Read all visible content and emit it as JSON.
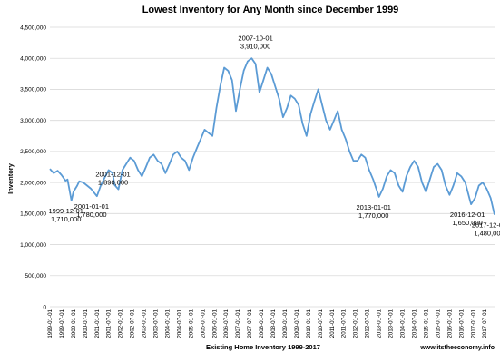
{
  "chart_data": {
    "type": "line",
    "title": "Lowest Inventory for Any Month since December 1999",
    "xlabel": "Existing Home Inventory 1999-2017",
    "ylabel": "Inventory",
    "watermark": "www.itstheeconomy.info",
    "ylim": [
      0,
      4500000
    ],
    "yticks": [
      "0",
      "500,000",
      "1,000,000",
      "1,500,000",
      "2,000,000",
      "2,500,000",
      "3,000,000",
      "3,500,000",
      "4,000,000",
      "4,500,000"
    ],
    "ytick_values": [
      0,
      500000,
      1000000,
      1500000,
      2000000,
      2500000,
      3000000,
      3500000,
      4000000,
      4500000
    ],
    "xticks": [
      "1999-01-01",
      "1999-07-01",
      "2000-01-01",
      "2000-07-01",
      "2001-01-01",
      "2001-07-01",
      "2002-01-01",
      "2002-07-01",
      "2003-01-01",
      "2003-07-01",
      "2004-01-01",
      "2004-07-01",
      "2005-01-01",
      "2005-07-01",
      "2006-01-01",
      "2006-07-01",
      "2007-01-01",
      "2007-07-01",
      "2008-01-01",
      "2008-07-01",
      "2009-01-01",
      "2009-07-01",
      "2010-01-01",
      "2010-07-01",
      "2011-01-01",
      "2011-07-01",
      "2012-01-01",
      "2012-07-01",
      "2013-01-01",
      "2013-07-01",
      "2014-01-01",
      "2014-07-01",
      "2015-01-01",
      "2015-07-01",
      "2016-01-01",
      "2016-07-01",
      "2017-01-01",
      "2017-07-01"
    ],
    "gridlines": true,
    "line_color": "#5b9bd5",
    "series": [
      {
        "x": [
          "1999-01-01",
          "1999-03-01",
          "1999-05-01",
          "1999-07-01",
          "1999-09-01",
          "1999-10-01",
          "1999-12-01",
          "2000-01-01",
          "2000-03-01",
          "2000-04-01",
          "2000-06-01",
          "2000-08-01",
          "2000-10-01",
          "2001-01-01",
          "2001-03-01",
          "2001-05-01",
          "2001-07-01",
          "2001-09-01",
          "2001-10-01",
          "2001-12-01",
          "2002-02-01",
          "2002-04-01",
          "2002-06-01",
          "2002-08-01",
          "2002-10-01",
          "2002-12-01",
          "2003-02-01",
          "2003-04-01",
          "2003-06-01",
          "2003-08-01",
          "2003-10-01",
          "2003-12-01",
          "2004-02-01",
          "2004-04-01",
          "2004-06-01",
          "2004-08-01",
          "2004-10-01",
          "2004-12-01",
          "2005-02-01",
          "2005-04-01",
          "2005-06-01",
          "2005-08-01",
          "2005-10-01",
          "2005-12-01",
          "2006-02-01",
          "2006-04-01",
          "2006-06-01",
          "2006-08-01",
          "2006-10-01",
          "2006-12-01",
          "2007-02-01",
          "2007-04-01",
          "2007-06-01",
          "2007-08-01",
          "2007-10-01",
          "2007-12-01",
          "2008-02-01",
          "2008-04-01",
          "2008-06-01",
          "2008-08-01",
          "2008-10-01",
          "2008-12-01",
          "2009-02-01",
          "2009-04-01",
          "2009-06-01",
          "2009-08-01",
          "2009-10-01",
          "2009-12-01",
          "2010-02-01",
          "2010-04-01",
          "2010-06-01",
          "2010-08-01",
          "2010-10-01",
          "2010-12-01",
          "2011-02-01",
          "2011-04-01",
          "2011-06-01",
          "2011-08-01",
          "2011-10-01",
          "2011-12-01",
          "2012-02-01",
          "2012-04-01",
          "2012-06-01",
          "2012-08-01",
          "2012-10-01",
          "2013-01-01",
          "2013-03-01",
          "2013-05-01",
          "2013-07-01",
          "2013-09-01",
          "2013-11-01",
          "2014-01-01",
          "2014-03-01",
          "2014-05-01",
          "2014-07-01",
          "2014-09-01",
          "2014-11-01",
          "2015-01-01",
          "2015-03-01",
          "2015-05-01",
          "2015-07-01",
          "2015-09-01",
          "2015-11-01",
          "2016-01-01",
          "2016-03-01",
          "2016-05-01",
          "2016-07-01",
          "2016-09-01",
          "2016-12-01",
          "2017-02-01",
          "2017-04-01",
          "2017-06-01",
          "2017-08-01",
          "2017-10-01",
          "2017-12-01"
        ],
        "values": [
          2220000,
          2150000,
          2190000,
          2120000,
          2030000,
          2050000,
          1710000,
          1850000,
          1950000,
          2020000,
          2000000,
          1950000,
          1900000,
          1780000,
          1950000,
          2080000,
          2200000,
          2150000,
          1960000,
          1890000,
          2200000,
          2300000,
          2400000,
          2350000,
          2200000,
          2100000,
          2250000,
          2400000,
          2450000,
          2350000,
          2300000,
          2150000,
          2300000,
          2450000,
          2500000,
          2400000,
          2350000,
          2200000,
          2400000,
          2550000,
          2700000,
          2850000,
          2800000,
          2750000,
          3200000,
          3550000,
          3850000,
          3800000,
          3650000,
          3150000,
          3500000,
          3800000,
          3950000,
          4000000,
          3910000,
          3450000,
          3650000,
          3850000,
          3750000,
          3550000,
          3350000,
          3050000,
          3200000,
          3400000,
          3350000,
          3250000,
          2950000,
          2750000,
          3100000,
          3300000,
          3500000,
          3250000,
          3000000,
          2850000,
          3000000,
          3150000,
          2850000,
          2700000,
          2500000,
          2350000,
          2350000,
          2450000,
          2400000,
          2200000,
          2050000,
          1770000,
          1900000,
          2100000,
          2200000,
          2150000,
          1950000,
          1850000,
          2100000,
          2250000,
          2350000,
          2250000,
          2000000,
          1850000,
          2050000,
          2250000,
          2300000,
          2200000,
          1950000,
          1800000,
          1950000,
          2150000,
          2100000,
          2000000,
          1650000,
          1750000,
          1950000,
          2000000,
          1900000,
          1750000,
          1480000
        ]
      }
    ],
    "annotations": [
      {
        "date": "1999-12-01",
        "value_text": "1,710,000",
        "value": 1710000
      },
      {
        "date": "2001-01-01",
        "value_text": "1,780,000",
        "value": 1780000
      },
      {
        "date": "2001-12-01",
        "value_text": "1,890,000",
        "value": 1890000
      },
      {
        "date": "2007-10-01",
        "value_text": "3,910,000",
        "value": 3910000
      },
      {
        "date": "2013-01-01",
        "value_text": "1,770,000",
        "value": 1770000
      },
      {
        "date": "2016-12-01",
        "value_text": "1,650,000",
        "value": 1650000
      },
      {
        "date": "2017-12-01",
        "value_text": "1,480,000",
        "value": 1480000
      }
    ]
  }
}
